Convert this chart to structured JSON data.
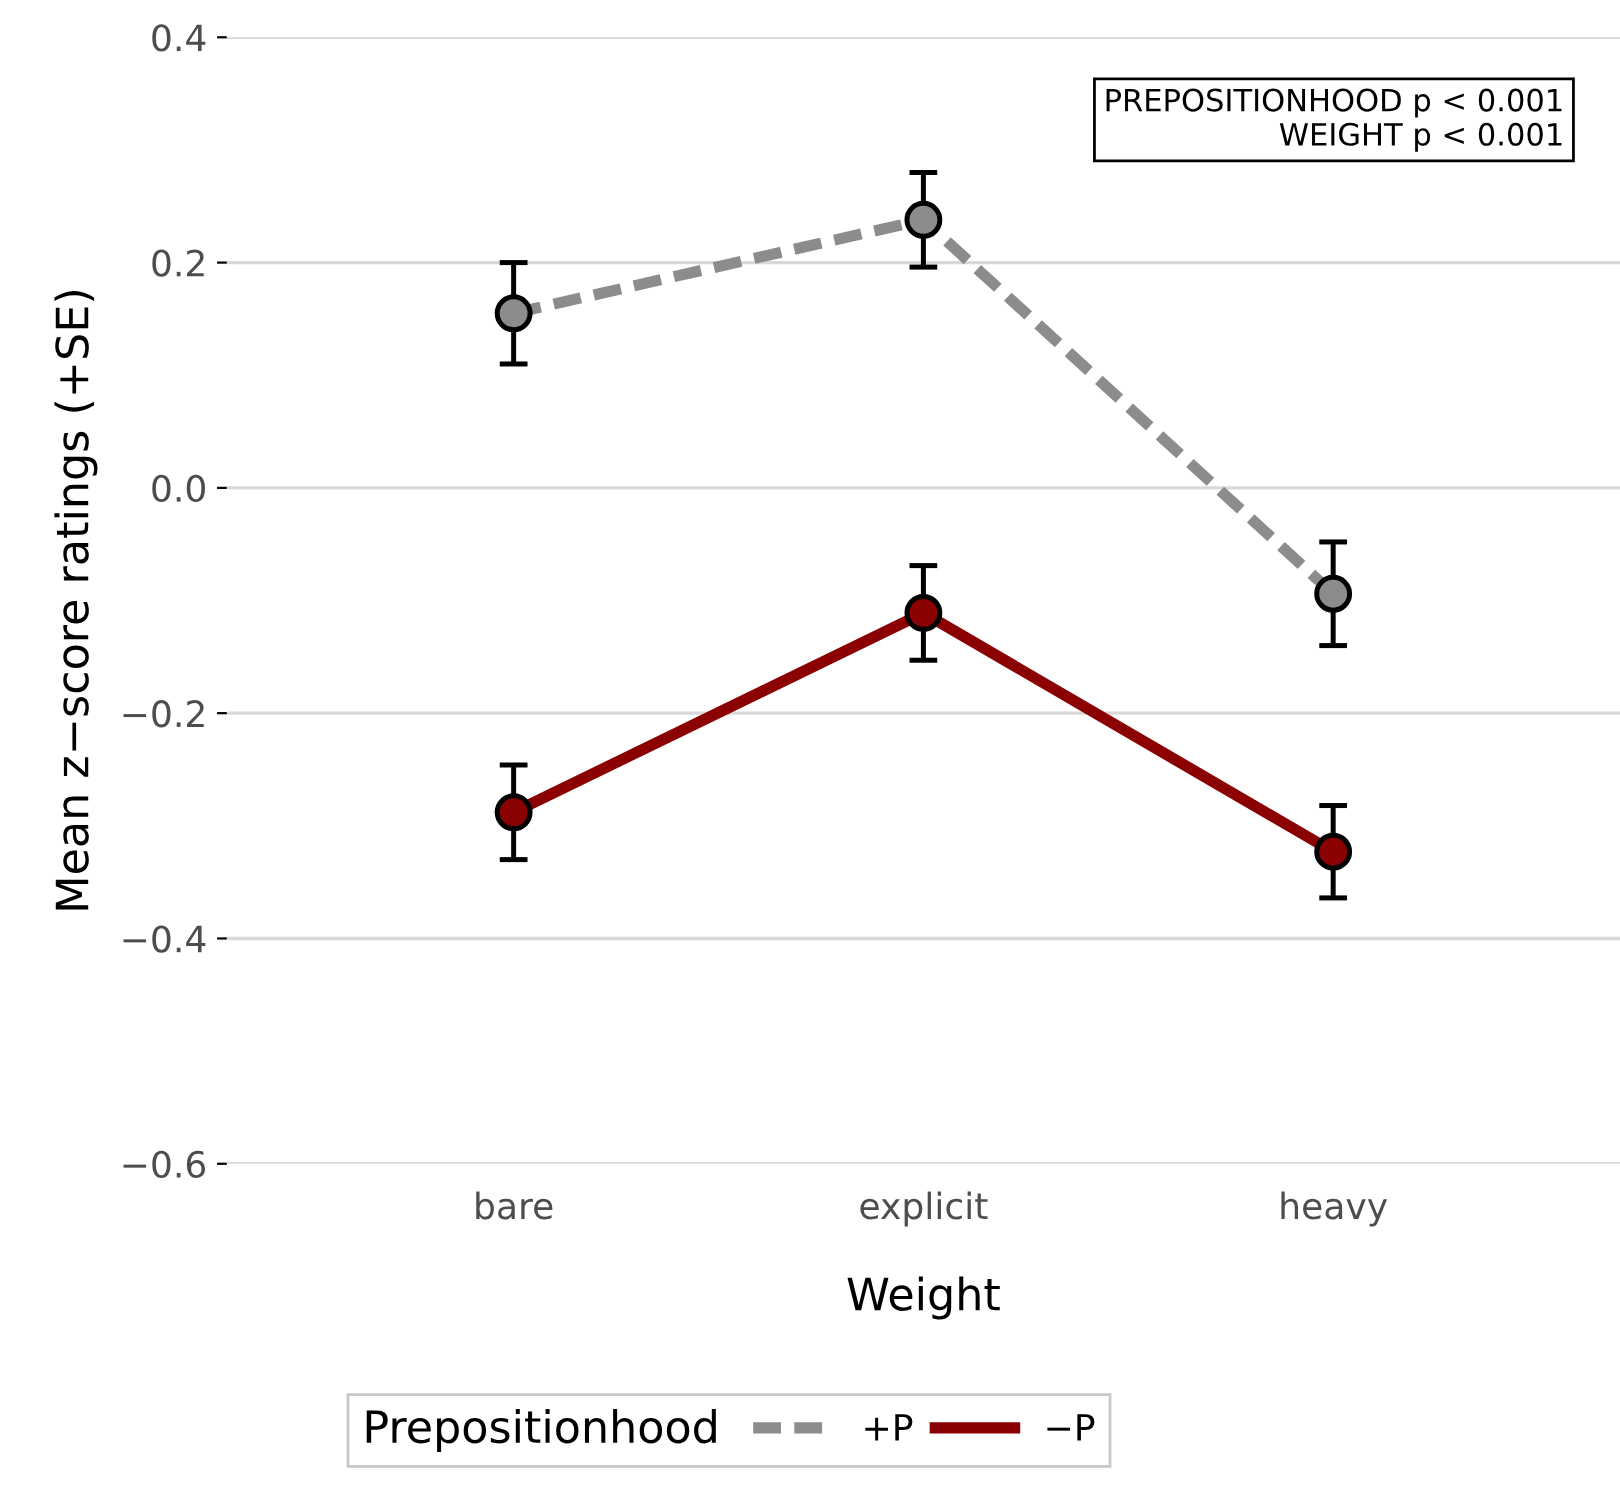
{
  "chart_data": {
    "type": "line",
    "xlabel": "Weight",
    "ylabel": "Mean z−score ratings (+SE)",
    "legend_title": "Prepositionhood",
    "categories": [
      "bare",
      "explicit",
      "heavy"
    ],
    "series": [
      {
        "name": "+P",
        "color": "#8c8c8c",
        "values": [
          0.155,
          0.238,
          -0.094
        ],
        "errors": [
          0.045,
          0.042,
          0.046
        ],
        "line_style": "dashed"
      },
      {
        "name": "−P",
        "color": "#8b0000",
        "values": [
          -0.288,
          -0.111,
          -0.323
        ],
        "errors": [
          0.042,
          0.042,
          0.041
        ],
        "line_style": "solid"
      }
    ],
    "ylim": [
      -0.6,
      0.4
    ],
    "yticks": [
      {
        "value": -0.6,
        "label": "−0.6"
      },
      {
        "value": -0.4,
        "label": "−0.4"
      },
      {
        "value": -0.2,
        "label": "−0.2"
      },
      {
        "value": 0.0,
        "label": "0.0"
      },
      {
        "value": 0.2,
        "label": "0.2"
      },
      {
        "value": 0.4,
        "label": "0.4"
      }
    ],
    "grid": "y",
    "legend": "bottom",
    "marker": "circle",
    "annotations": [
      "PREPOSITIONHOOD p < 0.001\n WEIGHT p < 0.001"
    ]
  }
}
